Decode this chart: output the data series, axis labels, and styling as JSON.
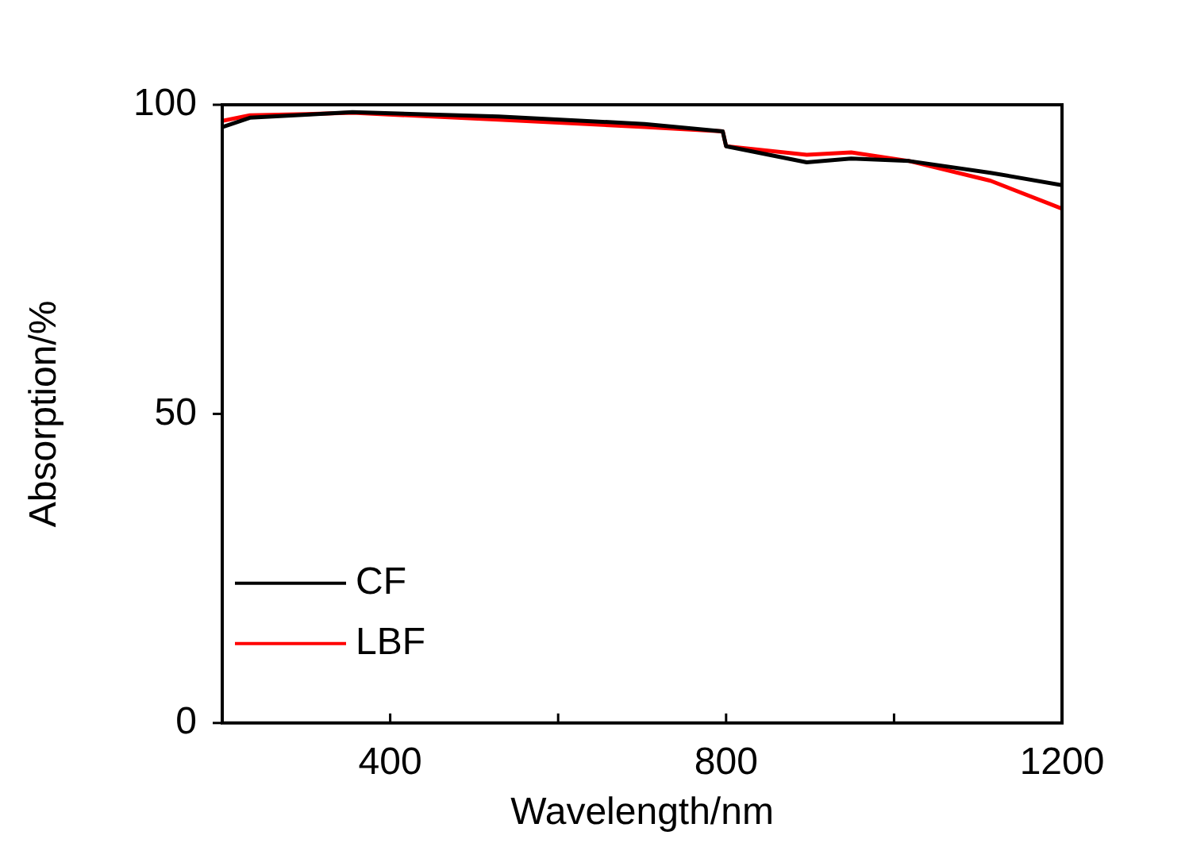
{
  "chart_data": {
    "type": "line",
    "xlabel": "Wavelength/nm",
    "ylabel": "Absorption/%",
    "xlim": [
      200,
      1200
    ],
    "ylim": [
      0,
      100
    ],
    "xticks": [
      {
        "value": 200,
        "label": null
      },
      400,
      {
        "value": 600,
        "label": null
      },
      800,
      {
        "value": 1000,
        "label": null
      },
      1200
    ],
    "yticks": [
      0,
      50,
      100
    ],
    "grid": false,
    "legend": "bottom left",
    "marker": "none",
    "line_style": "solid",
    "series": [
      {
        "name": "CF",
        "color": "#000000",
        "x": [
          200,
          233,
          300,
          355,
          529,
          703,
          796,
          800,
          896,
          949,
          1018,
          1115,
          1200
        ],
        "values": [
          96.4,
          97.9,
          98.4,
          98.8,
          98.1,
          96.9,
          95.7,
          93.3,
          90.7,
          91.3,
          90.9,
          89.0,
          87.0
        ]
      },
      {
        "name": "LBF",
        "color": "#ff0000",
        "x": [
          200,
          233,
          300,
          355,
          529,
          703,
          796,
          800,
          896,
          949,
          1018,
          1115,
          1200
        ],
        "values": [
          97.4,
          98.3,
          98.5,
          98.7,
          97.6,
          96.4,
          95.7,
          93.3,
          91.9,
          92.3,
          90.9,
          87.7,
          83.2
        ]
      }
    ]
  }
}
